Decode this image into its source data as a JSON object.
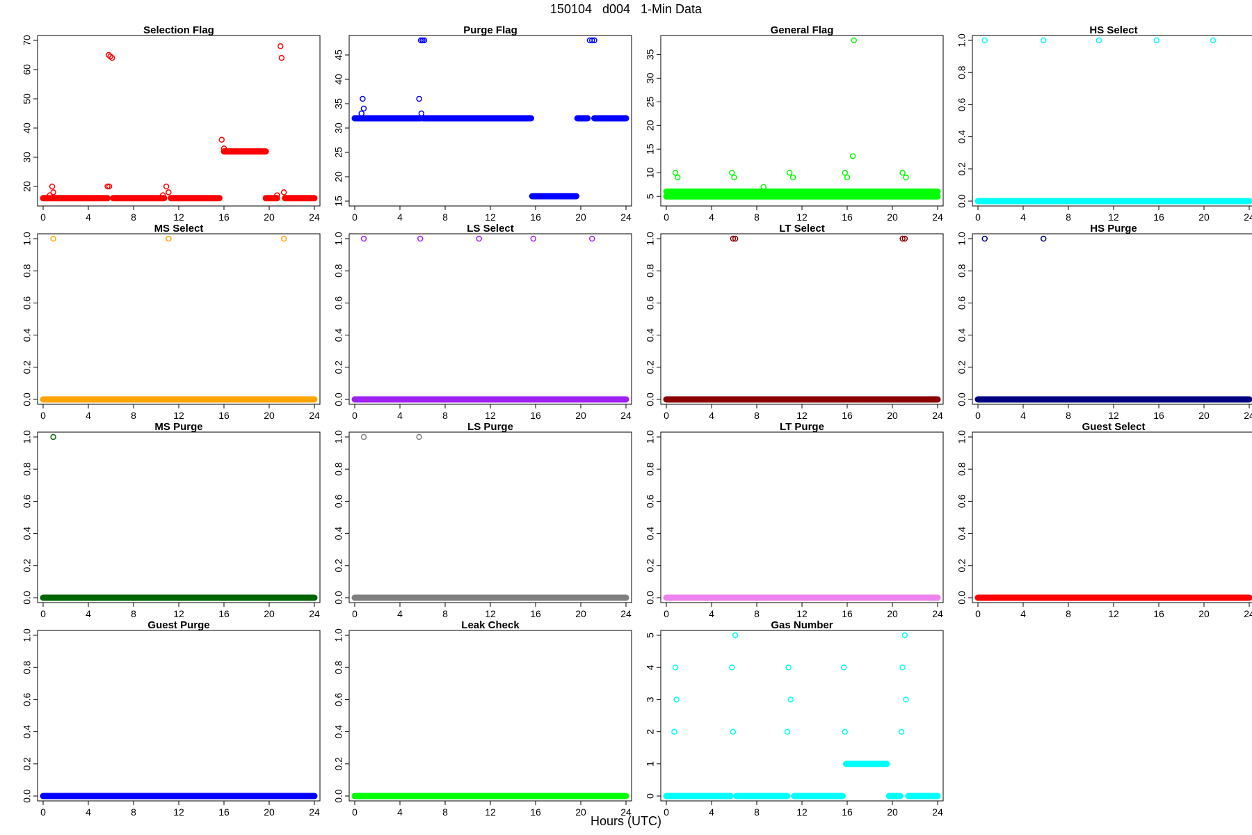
{
  "page": {
    "title": "150104   d004   1-Min Data",
    "x_label": "Hours (UTC)"
  },
  "chart_data": [
    {
      "type": "scatter",
      "title": "Selection Flag",
      "color": "#ff0000",
      "xlim": [
        0,
        24
      ],
      "ylim": [
        15,
        70
      ],
      "yticks": [
        20,
        30,
        40,
        50,
        60,
        70
      ],
      "baseline": {
        "value": 16,
        "ranges": [
          [
            0,
            5.7
          ],
          [
            6.2,
            10.7
          ],
          [
            11.3,
            15.6
          ],
          [
            19.7,
            20.7
          ],
          [
            21.4,
            24
          ]
        ]
      },
      "points": [
        [
          0.6,
          17
        ],
        [
          0.8,
          20
        ],
        [
          0.9,
          18
        ],
        [
          5.7,
          20
        ],
        [
          5.85,
          20
        ],
        [
          5.8,
          65
        ],
        [
          5.95,
          64.5
        ],
        [
          6.1,
          64
        ],
        [
          10.6,
          17
        ],
        [
          10.9,
          20
        ],
        [
          11.1,
          18
        ],
        [
          15.8,
          36
        ],
        [
          16.0,
          33
        ],
        [
          20.7,
          17
        ],
        [
          21.0,
          68
        ],
        [
          21.1,
          64
        ],
        [
          21.3,
          18
        ]
      ],
      "segments": [
        {
          "value": 32,
          "from": 16.0,
          "to": 19.7
        }
      ]
    },
    {
      "type": "scatter",
      "title": "Purge Flag",
      "color": "#0000ff",
      "xlim": [
        0,
        24
      ],
      "ylim": [
        15,
        48
      ],
      "yticks": [
        15,
        20,
        25,
        30,
        35,
        40,
        45
      ],
      "baseline": {
        "value": 32,
        "ranges": [
          [
            0,
            5.8
          ],
          [
            6.0,
            15.6
          ],
          [
            19.7,
            20.6
          ],
          [
            21.2,
            24
          ]
        ]
      },
      "points": [
        [
          0.6,
          33
        ],
        [
          0.7,
          36
        ],
        [
          0.8,
          34
        ],
        [
          5.7,
          36
        ],
        [
          5.9,
          33
        ],
        [
          5.85,
          48
        ],
        [
          6.0,
          48
        ],
        [
          6.15,
          48
        ],
        [
          20.8,
          48
        ],
        [
          21.0,
          48
        ],
        [
          21.2,
          48
        ]
      ],
      "segments": [
        {
          "value": 16,
          "from": 15.7,
          "to": 19.6
        }
      ]
    },
    {
      "type": "scatter",
      "title": "General Flag",
      "color": "#00ff00",
      "xlim": [
        0,
        24
      ],
      "ylim": [
        4,
        38
      ],
      "yticks": [
        5,
        10,
        15,
        20,
        25,
        30,
        35
      ],
      "baseline": {
        "value": 5,
        "ranges": [
          [
            0,
            24
          ]
        ]
      },
      "points": [
        [
          0.8,
          10
        ],
        [
          1.0,
          9
        ],
        [
          5.8,
          10
        ],
        [
          6.0,
          9
        ],
        [
          8.6,
          7
        ],
        [
          10.9,
          10
        ],
        [
          11.2,
          9
        ],
        [
          15.8,
          10
        ],
        [
          16.0,
          9
        ],
        [
          16.5,
          13.5
        ],
        [
          16.6,
          38
        ],
        [
          20.9,
          10
        ],
        [
          21.2,
          9
        ]
      ],
      "segments": [
        {
          "value": 6,
          "from": 0,
          "to": 24
        }
      ]
    },
    {
      "type": "scatter",
      "title": "HS Select",
      "color": "#00ffff",
      "xlim": [
        0,
        24
      ],
      "ylim": [
        0,
        1
      ],
      "yticks": [
        0.0,
        0.2,
        0.4,
        0.6,
        0.8,
        1.0
      ],
      "baseline": {
        "value": 0,
        "ranges": [
          [
            0,
            24
          ]
        ]
      },
      "points": [
        [
          0.6,
          1
        ],
        [
          5.8,
          1
        ],
        [
          10.7,
          1
        ],
        [
          15.8,
          1
        ],
        [
          20.8,
          1
        ]
      ],
      "segments": []
    },
    {
      "type": "scatter",
      "title": "MS Select",
      "color": "#ffa500",
      "xlim": [
        0,
        24
      ],
      "ylim": [
        0,
        1
      ],
      "yticks": [
        0.0,
        0.2,
        0.4,
        0.6,
        0.8,
        1.0
      ],
      "baseline": {
        "value": 0,
        "ranges": [
          [
            0,
            24
          ]
        ]
      },
      "points": [
        [
          0.9,
          1
        ],
        [
          11.1,
          1
        ],
        [
          21.3,
          1
        ]
      ],
      "segments": []
    },
    {
      "type": "scatter",
      "title": "LS Select",
      "color": "#a020f0",
      "xlim": [
        0,
        24
      ],
      "ylim": [
        0,
        1
      ],
      "yticks": [
        0.0,
        0.2,
        0.4,
        0.6,
        0.8,
        1.0
      ],
      "baseline": {
        "value": 0,
        "ranges": [
          [
            0,
            24
          ]
        ]
      },
      "points": [
        [
          0.8,
          1
        ],
        [
          5.8,
          1
        ],
        [
          11.0,
          1
        ],
        [
          15.8,
          1
        ],
        [
          21.0,
          1
        ]
      ],
      "segments": []
    },
    {
      "type": "scatter",
      "title": "LT Select",
      "color": "#8b0000",
      "xlim": [
        0,
        24
      ],
      "ylim": [
        0,
        1
      ],
      "yticks": [
        0.0,
        0.2,
        0.4,
        0.6,
        0.8,
        1.0
      ],
      "baseline": {
        "value": 0,
        "ranges": [
          [
            0,
            24
          ]
        ]
      },
      "points": [
        [
          5.9,
          1
        ],
        [
          6.1,
          1
        ],
        [
          20.9,
          1
        ],
        [
          21.1,
          1
        ]
      ],
      "segments": []
    },
    {
      "type": "scatter",
      "title": "HS Purge",
      "color": "#000080",
      "xlim": [
        0,
        24
      ],
      "ylim": [
        0,
        1
      ],
      "yticks": [
        0.0,
        0.2,
        0.4,
        0.6,
        0.8,
        1.0
      ],
      "baseline": {
        "value": 0,
        "ranges": [
          [
            0,
            24
          ]
        ]
      },
      "points": [
        [
          0.6,
          1
        ],
        [
          5.8,
          1
        ]
      ],
      "segments": []
    },
    {
      "type": "scatter",
      "title": "MS Purge",
      "color": "#006400",
      "xlim": [
        0,
        24
      ],
      "ylim": [
        0,
        1
      ],
      "yticks": [
        0.0,
        0.2,
        0.4,
        0.6,
        0.8,
        1.0
      ],
      "baseline": {
        "value": 0,
        "ranges": [
          [
            0,
            24
          ]
        ]
      },
      "points": [
        [
          0.9,
          1
        ]
      ],
      "segments": []
    },
    {
      "type": "scatter",
      "title": "LS Purge",
      "color": "#808080",
      "xlim": [
        0,
        24
      ],
      "ylim": [
        0,
        1
      ],
      "yticks": [
        0.0,
        0.2,
        0.4,
        0.6,
        0.8,
        1.0
      ],
      "baseline": {
        "value": 0,
        "ranges": [
          [
            0,
            24
          ]
        ]
      },
      "points": [
        [
          0.8,
          1
        ],
        [
          5.7,
          1
        ]
      ],
      "segments": []
    },
    {
      "type": "scatter",
      "title": "LT Purge",
      "color": "#ee82ee",
      "xlim": [
        0,
        24
      ],
      "ylim": [
        0,
        1
      ],
      "yticks": [
        0.0,
        0.2,
        0.4,
        0.6,
        0.8,
        1.0
      ],
      "baseline": {
        "value": 0,
        "ranges": [
          [
            0,
            24
          ]
        ]
      },
      "points": [],
      "segments": []
    },
    {
      "type": "scatter",
      "title": "Guest Select",
      "color": "#ff0000",
      "xlim": [
        0,
        24
      ],
      "ylim": [
        0,
        1
      ],
      "yticks": [
        0.0,
        0.2,
        0.4,
        0.6,
        0.8,
        1.0
      ],
      "baseline": {
        "value": 0,
        "ranges": [
          [
            0,
            24
          ]
        ]
      },
      "points": [],
      "segments": []
    },
    {
      "type": "scatter",
      "title": "Guest Purge",
      "color": "#0000ff",
      "xlim": [
        0,
        24
      ],
      "ylim": [
        0,
        1
      ],
      "yticks": [
        0.0,
        0.2,
        0.4,
        0.6,
        0.8,
        1.0
      ],
      "baseline": {
        "value": 0,
        "ranges": [
          [
            0,
            24
          ]
        ]
      },
      "points": [],
      "segments": []
    },
    {
      "type": "scatter",
      "title": "Leak Check",
      "color": "#00ff00",
      "xlim": [
        0,
        24
      ],
      "ylim": [
        0,
        1
      ],
      "yticks": [
        0.0,
        0.2,
        0.4,
        0.6,
        0.8,
        1.0
      ],
      "baseline": {
        "value": 0,
        "ranges": [
          [
            0,
            24
          ]
        ]
      },
      "points": [],
      "segments": []
    },
    {
      "type": "scatter",
      "title": "Gas Number",
      "color": "#00ffff",
      "xlim": [
        0,
        24
      ],
      "ylim": [
        0,
        5
      ],
      "yticks": [
        0,
        1,
        2,
        3,
        4,
        5
      ],
      "baseline": {
        "value": 0,
        "ranges": [
          [
            0,
            5.7
          ],
          [
            6.2,
            10.7
          ],
          [
            11.3,
            15.6
          ],
          [
            19.7,
            20.7
          ],
          [
            21.4,
            24
          ]
        ]
      },
      "points": [
        [
          0.7,
          2
        ],
        [
          0.8,
          4
        ],
        [
          0.9,
          3
        ],
        [
          5.8,
          4
        ],
        [
          5.9,
          2
        ],
        [
          6.1,
          5
        ],
        [
          10.7,
          2
        ],
        [
          10.8,
          4
        ],
        [
          11.0,
          3
        ],
        [
          15.7,
          4
        ],
        [
          15.8,
          2
        ],
        [
          20.8,
          2
        ],
        [
          20.9,
          4
        ],
        [
          21.1,
          5
        ],
        [
          21.2,
          3
        ]
      ],
      "segments": [
        {
          "value": 1,
          "from": 15.9,
          "to": 19.5
        }
      ]
    }
  ]
}
